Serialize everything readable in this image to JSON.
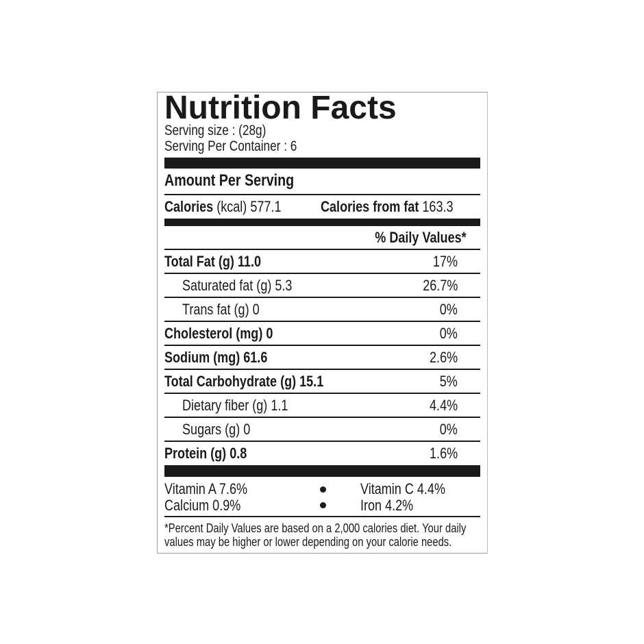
{
  "title": "Nutrition  Facts",
  "serving_size": "Serving size : (28g)",
  "servings_per_container": "Serving Per Container : 6",
  "amount_per_serving": "Amount Per Serving",
  "calories": {
    "label": "Calories",
    "unit": "(kcal)",
    "value": "577.1",
    "from_fat_label": "Calories from fat",
    "from_fat_value": "163.3"
  },
  "daily_values_header": "% Daily Values*",
  "nutrients": [
    {
      "name": "Total Fat (g) 11.0",
      "pct": "17%",
      "bold": true
    },
    {
      "name": "Saturated fat (g) 5.3",
      "pct": "26.7%",
      "bold": false
    },
    {
      "name": "Trans fat (g) 0",
      "pct": "0%",
      "bold": false
    },
    {
      "name": "Cholesterol (mg) 0",
      "pct": "0%",
      "bold": true
    },
    {
      "name": "Sodium (mg) 61.6",
      "pct": "2.6%",
      "bold": true
    },
    {
      "name": "Total Carbohydrate (g) 15.1",
      "pct": "5%",
      "bold": true
    },
    {
      "name": "Dietary fiber (g) 1.1",
      "pct": "4.4%",
      "bold": false
    },
    {
      "name": "Sugars (g) 0",
      "pct": "0%",
      "bold": false
    },
    {
      "name": "Protein (g) 0.8",
      "pct": "1.6%",
      "bold": true
    }
  ],
  "vitamins": {
    "vitamin_a": "Vitamin A  7.6%",
    "vitamin_c": "Vitamin C  4.4%",
    "calcium": "Calcium  0.9%",
    "iron": "Iron  4.2%"
  },
  "footnote": {
    "line1": "*Percent Daily Values are based on a 2,000 calories diet. Your daily",
    "line2": "values may be higher or lower depending on your calorie needs."
  }
}
